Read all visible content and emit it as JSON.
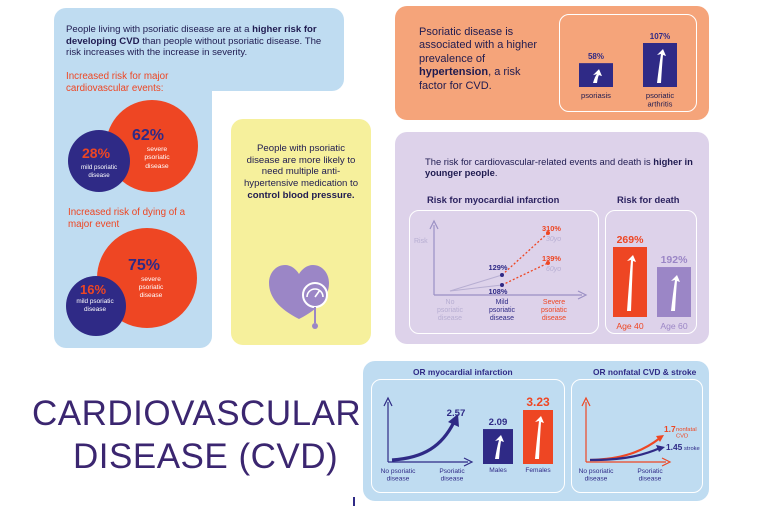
{
  "colors": {
    "blue_panel": "#bfdcf1",
    "yellow_panel": "#f6f09c",
    "orange_panel": "#f5a47a",
    "lavender_panel": "#ddd2ea",
    "navy": "#2f2a86",
    "orange_red": "#ee4623",
    "purple_heart": "#9b86c6",
    "title_purple": "#3b2670"
  },
  "risk_panel": {
    "intro_pre": "People living with psoriatic disease are at a ",
    "intro_bold": "higher risk for developing CVD",
    "intro_post": " than people without psoriatic disease. The risk increases with the increase in severity.",
    "events_heading": "Increased risk for major cardiovascular events:",
    "events_severe_value": "62%",
    "events_severe_label": "severe psoriatic disease",
    "events_mild_value": "28%",
    "events_mild_label": "mild psoriatic disease",
    "death_heading": "Increased risk of dying of a major event",
    "death_severe_value": "75%",
    "death_severe_label": "severe psoriatic disease",
    "death_mild_value": "16%",
    "death_mild_label": "mild psoriatic disease"
  },
  "medication_panel": {
    "text_pre": "People with psoriatic disease are more likely to need multiple anti-hypertensive medication to ",
    "text_bold": "control blood pressure."
  },
  "hypertension_panel": {
    "text_pre": "Psoriatic disease is associated with a higher prevalence of ",
    "text_bold": "hypertension",
    "text_post": ", a risk factor for CVD.",
    "bars": [
      {
        "label": "psoriasis",
        "value": 58,
        "value_label": "58%"
      },
      {
        "label": "psoriatic arthritis",
        "value": 107,
        "value_label": "107%"
      }
    ]
  },
  "younger_panel": {
    "text_pre": "The risk for cardiovascular-related events and death is ",
    "text_bold": "higher in younger people",
    "text_post": ".",
    "mi_title": "Risk for myocardial infarction",
    "mi_y_label": "Risk",
    "mi_categories": [
      "No psoriatic disease",
      "Mild psoriatic disease",
      "Severe psoriatic disease"
    ],
    "mi_points": [
      {
        "value_label": "129%",
        "age_label": ""
      },
      {
        "value_label": "108%",
        "age_label": ""
      },
      {
        "value_label": "310%",
        "age_label": "30yo"
      },
      {
        "value_label": "139%",
        "age_label": "60yo"
      }
    ],
    "death_title": "Risk for death",
    "death_bars": [
      {
        "label": "Age 40",
        "value": 269,
        "value_label": "269%"
      },
      {
        "label": "Age 60",
        "value": 192,
        "value_label": "192%"
      }
    ]
  },
  "or_panel": {
    "mi_title": "OR myocardial infarction",
    "mi_curve_value": "2.57",
    "mi_x_labels": [
      "No psoriatic disease",
      "Psoriatic disease"
    ],
    "mi_bars": [
      {
        "label": "Males",
        "value": 2.09,
        "value_label": "2.09"
      },
      {
        "label": "Females",
        "value": 3.23,
        "value_label": "3.23"
      }
    ],
    "stroke_title": "OR nonfatal CVD & stroke",
    "stroke_x_labels": [
      "No psoriatic disease",
      "Psoriatic disease"
    ],
    "stroke_series": [
      {
        "name": "nonfatal CVD",
        "value_label": "1.7"
      },
      {
        "name": "stroke",
        "value_label": "1.45"
      }
    ]
  },
  "title": {
    "line1": "CARDIOVASCULAR",
    "line2": "DISEASE (CVD)"
  }
}
